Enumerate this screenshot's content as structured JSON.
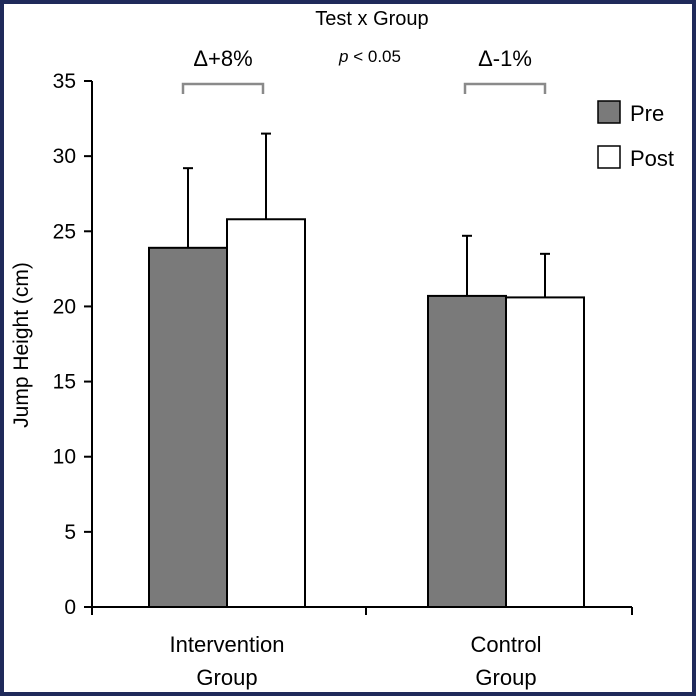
{
  "chart_data": {
    "type": "bar",
    "title": "Test x Group",
    "ylabel": "Jump Height (cm)",
    "xlabel": "",
    "ylim": [
      0,
      35
    ],
    "yticks": [
      0,
      5,
      10,
      15,
      20,
      25,
      30,
      35
    ],
    "categories": [
      "Intervention Group",
      "Control Group"
    ],
    "category_lines": [
      [
        "Intervention",
        "Group"
      ],
      [
        "Control",
        "Group"
      ]
    ],
    "series": [
      {
        "name": "Pre",
        "values": [
          23.9,
          20.7
        ],
        "errors": [
          5.3,
          4.0
        ],
        "color": "#7a7a7a"
      },
      {
        "name": "Post",
        "values": [
          25.8,
          20.6
        ],
        "errors": [
          5.7,
          2.9
        ],
        "color": "#ffffff"
      }
    ],
    "legend_position": "top-right",
    "annotations": {
      "intervention_change": "Δ+8%",
      "control_change": "Δ-1%",
      "p_italic": "p",
      "p_rest": " < 0.05"
    },
    "grid": false
  }
}
